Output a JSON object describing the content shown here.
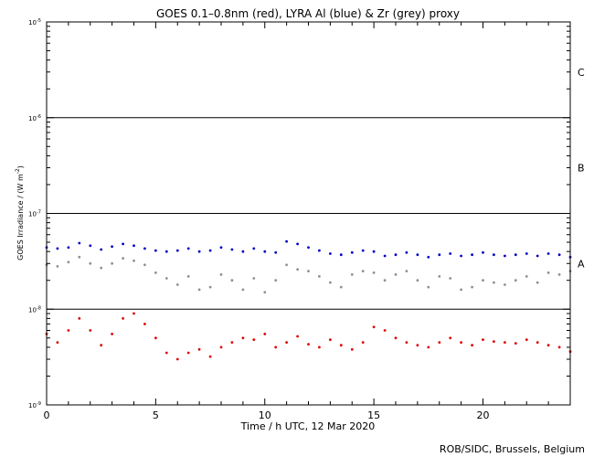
{
  "chart_data": {
    "type": "scatter",
    "title": "GOES 0.1–0.8nm (red), LYRA Al (blue) & Zr (grey) proxy",
    "xlabel": "Time / h UTC, 12 Mar 2020",
    "ylabel": "GOES Irradiance / (W m",
    "ylabel_sup": "-2",
    "ylabel_close": ")",
    "xlim": [
      0,
      24
    ],
    "ylim": [
      1e-09,
      1e-05
    ],
    "yscale": "log",
    "xticks": [
      0,
      5,
      10,
      15,
      20
    ],
    "xtick_labels": [
      "0",
      "5",
      "10",
      "15",
      "20"
    ],
    "yticks": [
      1e-09,
      1e-08,
      1e-07,
      1e-06,
      1e-05
    ],
    "ytick_labels": [
      {
        "base": "10",
        "exp": "-9"
      },
      {
        "base": "10",
        "exp": "-8"
      },
      {
        "base": "10",
        "exp": "-7"
      },
      {
        "base": "10",
        "exp": "-6"
      },
      {
        "base": "10",
        "exp": "-5"
      }
    ],
    "flare_class_lines": [
      1e-08,
      1e-07,
      1e-06
    ],
    "flare_classes": [
      {
        "label": "A",
        "y": 3e-08
      },
      {
        "label": "B",
        "y": 3e-07
      },
      {
        "label": "C",
        "y": 3e-06
      }
    ],
    "series": [
      {
        "color": "#0000c8",
        "x": [
          0,
          0.5,
          1,
          1.5,
          2,
          2.5,
          3,
          3.5,
          4,
          4.5,
          5,
          5.5,
          6,
          6.5,
          7,
          7.5,
          8,
          8.5,
          9,
          9.5,
          10,
          10.5,
          11,
          11.5,
          12,
          12.5,
          13,
          13.5,
          14,
          14.5,
          15,
          15.5,
          16,
          16.5,
          17,
          17.5,
          18,
          18.5,
          19,
          19.5,
          20,
          20.5,
          21,
          21.5,
          22,
          22.5,
          23,
          23.5,
          24
        ],
        "y": [
          4.4e-08,
          4.3e-08,
          4.4e-08,
          4.9e-08,
          4.6e-08,
          4.2e-08,
          4.5e-08,
          4.8e-08,
          4.6e-08,
          4.3e-08,
          4.1e-08,
          4e-08,
          4.1e-08,
          4.3e-08,
          4e-08,
          4.1e-08,
          4.4e-08,
          4.2e-08,
          4e-08,
          4.3e-08,
          4e-08,
          3.9e-08,
          5.1e-08,
          4.8e-08,
          4.4e-08,
          4.1e-08,
          3.8e-08,
          3.7e-08,
          3.9e-08,
          4.1e-08,
          4e-08,
          3.6e-08,
          3.7e-08,
          3.9e-08,
          3.7e-08,
          3.5e-08,
          3.7e-08,
          3.8e-08,
          3.6e-08,
          3.7e-08,
          3.9e-08,
          3.7e-08,
          3.6e-08,
          3.7e-08,
          3.8e-08,
          3.6e-08,
          3.8e-08,
          3.7e-08,
          3.5e-08
        ]
      },
      {
        "color": "#909090",
        "x": [
          0,
          0.5,
          1,
          1.5,
          2,
          2.5,
          3,
          3.5,
          4,
          4.5,
          5,
          5.5,
          6,
          6.5,
          7,
          7.5,
          8,
          8.5,
          9,
          9.5,
          10,
          10.5,
          11,
          11.5,
          12,
          12.5,
          13,
          13.5,
          14,
          14.5,
          15,
          15.5,
          16,
          16.5,
          17,
          17.5,
          18,
          18.5,
          19,
          19.5,
          20,
          20.5,
          21,
          21.5,
          22,
          22.5,
          23,
          23.5,
          24
        ],
        "y": [
          2.9e-08,
          2.8e-08,
          3.1e-08,
          3.5e-08,
          3e-08,
          2.7e-08,
          3e-08,
          3.4e-08,
          3.2e-08,
          2.9e-08,
          2.4e-08,
          2.1e-08,
          1.8e-08,
          2.2e-08,
          1.6e-08,
          1.7e-08,
          2.3e-08,
          2e-08,
          1.6e-08,
          2.1e-08,
          1.5e-08,
          2e-08,
          2.9e-08,
          2.6e-08,
          2.5e-08,
          2.2e-08,
          1.9e-08,
          1.7e-08,
          2.3e-08,
          2.5e-08,
          2.4e-08,
          2e-08,
          2.3e-08,
          2.5e-08,
          2e-08,
          1.7e-08,
          2.2e-08,
          2.1e-08,
          1.6e-08,
          1.7e-08,
          2e-08,
          1.9e-08,
          1.8e-08,
          2e-08,
          2.2e-08,
          1.9e-08,
          2.4e-08,
          2.3e-08,
          2.5e-08
        ]
      },
      {
        "color": "#e00000",
        "x": [
          0,
          0.5,
          1,
          1.5,
          2,
          2.5,
          3,
          3.5,
          4,
          4.5,
          5,
          5.5,
          6,
          6.5,
          7,
          7.5,
          8,
          8.5,
          9,
          9.5,
          10,
          10.5,
          11,
          11.5,
          12,
          12.5,
          13,
          13.5,
          14,
          14.5,
          15,
          15.5,
          16,
          16.5,
          17,
          17.5,
          18,
          18.5,
          19,
          19.5,
          20,
          20.5,
          21,
          21.5,
          22,
          22.5,
          23,
          23.5,
          24
        ],
        "y": [
          5.5e-09,
          4.5e-09,
          6e-09,
          8e-09,
          6e-09,
          4.2e-09,
          5.5e-09,
          8e-09,
          9e-09,
          7e-09,
          5e-09,
          3.5e-09,
          3e-09,
          3.5e-09,
          3.8e-09,
          3.2e-09,
          4e-09,
          4.5e-09,
          5e-09,
          4.8e-09,
          5.5e-09,
          4e-09,
          4.5e-09,
          5.2e-09,
          4.3e-09,
          4e-09,
          4.8e-09,
          4.2e-09,
          3.8e-09,
          4.5e-09,
          6.5e-09,
          6e-09,
          5e-09,
          4.5e-09,
          4.2e-09,
          4e-09,
          4.5e-09,
          5e-09,
          4.5e-09,
          4.2e-09,
          4.8e-09,
          4.6e-09,
          4.5e-09,
          4.4e-09,
          4.8e-09,
          4.5e-09,
          4.2e-09,
          4e-09,
          3.6e-09
        ]
      }
    ]
  },
  "credit": "ROB/SIDC, Brussels, Belgium"
}
